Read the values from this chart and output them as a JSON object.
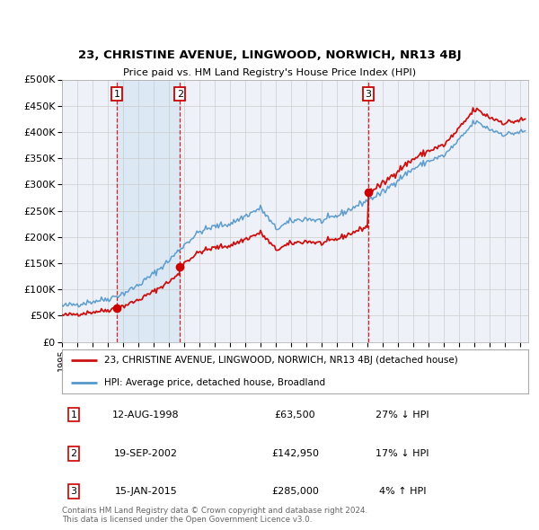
{
  "title1": "23, CHRISTINE AVENUE, LINGWOOD, NORWICH, NR13 4BJ",
  "title2": "Price paid vs. HM Land Registry's House Price Index (HPI)",
  "ylabel_ticks": [
    "£0",
    "£50K",
    "£100K",
    "£150K",
    "£200K",
    "£250K",
    "£300K",
    "£350K",
    "£400K",
    "£450K",
    "£500K"
  ],
  "ytick_values": [
    0,
    50000,
    100000,
    150000,
    200000,
    250000,
    300000,
    350000,
    400000,
    450000,
    500000
  ],
  "ylim": [
    0,
    500000
  ],
  "xlim_start": 1995.0,
  "xlim_end": 2025.5,
  "sale_dates": [
    1998.608,
    2002.718,
    2015.042
  ],
  "sale_prices": [
    63500,
    142950,
    285000
  ],
  "sale_labels": [
    "1",
    "2",
    "3"
  ],
  "vline_color": "#cc0000",
  "dot_color": "#cc0000",
  "shade_color": "#dce9f5",
  "legend_label_red": "23, CHRISTINE AVENUE, LINGWOOD, NORWICH, NR13 4BJ (detached house)",
  "legend_label_blue": "HPI: Average price, detached house, Broadland",
  "red_line_color": "#cc1111",
  "blue_line_color": "#5599cc",
  "table_rows": [
    {
      "num": "1",
      "date": "12-AUG-1998",
      "price": "£63,500",
      "hpi": "27% ↓ HPI"
    },
    {
      "num": "2",
      "date": "19-SEP-2002",
      "price": "£142,950",
      "hpi": "17% ↓ HPI"
    },
    {
      "num": "3",
      "date": "15-JAN-2015",
      "price": "£285,000",
      "hpi": "4% ↑ HPI"
    }
  ],
  "footer": "Contains HM Land Registry data © Crown copyright and database right 2024.\nThis data is licensed under the Open Government Licence v3.0.",
  "background_color": "#ffffff",
  "grid_color": "#cccccc",
  "plot_bg_color": "#eef2f8"
}
